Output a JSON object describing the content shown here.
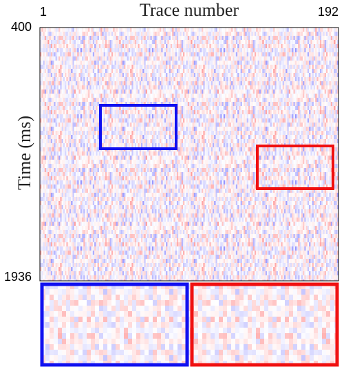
{
  "chart_data": {
    "type": "image",
    "title": "Trace number",
    "y_label": "Time (ms)",
    "xlim": [
      1,
      192
    ],
    "xticks": [
      1,
      192
    ],
    "ylim": [
      400,
      1936
    ],
    "yticks": [
      400,
      1936
    ]
  }
}
